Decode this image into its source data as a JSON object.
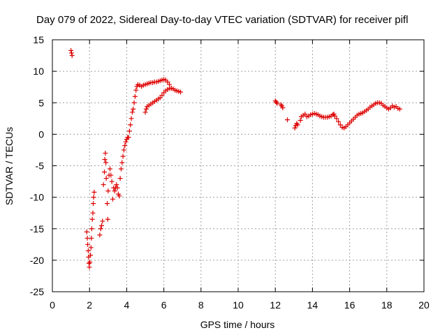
{
  "chart_data": {
    "type": "scatter",
    "title": "Day 079 of 2022, Sidereal Day-to-day VTEC variation (SDTVAR) for receiver pifl",
    "xlabel": "GPS time / hours",
    "ylabel": "SDTVAR / TECUs",
    "xlim": [
      0,
      20
    ],
    "ylim": [
      -25,
      15
    ],
    "xticks": [
      0,
      2,
      4,
      6,
      8,
      10,
      12,
      14,
      16,
      18,
      20
    ],
    "yticks": [
      -25,
      -20,
      -15,
      -10,
      -5,
      0,
      5,
      10,
      15
    ],
    "grid": true,
    "marker": "+",
    "marker_color": "#dd0000",
    "series": [
      {
        "name": "SDTVAR",
        "points": [
          [
            1.0,
            13.3
          ],
          [
            1.03,
            12.9
          ],
          [
            1.06,
            12.5
          ],
          [
            1.85,
            -15.5
          ],
          [
            1.88,
            -16.5
          ],
          [
            1.9,
            -17.5
          ],
          [
            1.93,
            -18.5
          ],
          [
            1.95,
            -19.5
          ],
          [
            1.97,
            -20.5
          ],
          [
            1.99,
            -21.1
          ],
          [
            2.02,
            -20.3
          ],
          [
            2.05,
            -19.2
          ],
          [
            2.08,
            -18.0
          ],
          [
            2.1,
            -16.5
          ],
          [
            2.12,
            -15.0
          ],
          [
            2.15,
            -13.5
          ],
          [
            2.18,
            -12.5
          ],
          [
            2.2,
            -11.0
          ],
          [
            2.22,
            -10.0
          ],
          [
            2.25,
            -9.2
          ],
          [
            2.55,
            -16.0
          ],
          [
            2.6,
            -15.0
          ],
          [
            2.65,
            -14.5
          ],
          [
            2.7,
            -13.8
          ],
          [
            2.75,
            -8.0
          ],
          [
            2.8,
            -6.0
          ],
          [
            2.82,
            -4.0
          ],
          [
            2.85,
            -3.0
          ],
          [
            2.88,
            -4.5
          ],
          [
            2.9,
            -7.0
          ],
          [
            2.95,
            -11.0
          ],
          [
            2.98,
            -13.5
          ],
          [
            3.0,
            -9.0
          ],
          [
            3.05,
            -6.5
          ],
          [
            3.1,
            -5.5
          ],
          [
            3.15,
            -6.5
          ],
          [
            3.2,
            -7.5
          ],
          [
            3.25,
            -10.3
          ],
          [
            3.3,
            -8.5
          ],
          [
            3.35,
            -9.0
          ],
          [
            3.4,
            -8.5
          ],
          [
            3.45,
            -8.0
          ],
          [
            3.5,
            -8.5
          ],
          [
            3.55,
            -9.5
          ],
          [
            3.6,
            -9.8
          ],
          [
            3.65,
            -7.0
          ],
          [
            3.7,
            -5.5
          ],
          [
            3.75,
            -4.5
          ],
          [
            3.8,
            -3.5
          ],
          [
            3.85,
            -2.5
          ],
          [
            3.9,
            -1.8
          ],
          [
            3.95,
            -1.2
          ],
          [
            4.0,
            -0.8
          ],
          [
            4.05,
            -0.5
          ],
          [
            4.1,
            -0.5
          ],
          [
            4.15,
            0.5
          ],
          [
            4.2,
            1.5
          ],
          [
            4.25,
            2.5
          ],
          [
            4.3,
            3.5
          ],
          [
            4.35,
            4.0
          ],
          [
            4.4,
            5.0
          ],
          [
            4.45,
            6.0
          ],
          [
            4.5,
            7.0
          ],
          [
            4.55,
            7.6
          ],
          [
            4.6,
            7.9
          ],
          [
            4.7,
            7.8
          ],
          [
            4.8,
            7.6
          ],
          [
            4.9,
            7.8
          ],
          [
            5.0,
            7.9
          ],
          [
            5.1,
            8.0
          ],
          [
            5.2,
            8.1
          ],
          [
            5.3,
            8.2
          ],
          [
            5.4,
            8.2
          ],
          [
            5.5,
            8.3
          ],
          [
            5.6,
            8.3
          ],
          [
            5.7,
            8.4
          ],
          [
            5.8,
            8.5
          ],
          [
            5.9,
            8.6
          ],
          [
            6.0,
            8.7
          ],
          [
            6.1,
            8.6
          ],
          [
            6.2,
            8.3
          ],
          [
            6.3,
            7.9
          ],
          [
            6.4,
            7.3
          ],
          [
            5.0,
            3.5
          ],
          [
            5.05,
            4.0
          ],
          [
            5.1,
            4.4
          ],
          [
            5.2,
            4.6
          ],
          [
            5.3,
            4.8
          ],
          [
            5.4,
            5.0
          ],
          [
            5.5,
            5.2
          ],
          [
            5.6,
            5.4
          ],
          [
            5.7,
            5.6
          ],
          [
            5.8,
            5.8
          ],
          [
            5.9,
            6.2
          ],
          [
            6.0,
            6.6
          ],
          [
            6.1,
            6.9
          ],
          [
            6.2,
            7.1
          ],
          [
            6.3,
            7.3
          ],
          [
            6.4,
            7.3
          ],
          [
            6.5,
            7.2
          ],
          [
            6.6,
            7.0
          ],
          [
            6.7,
            6.9
          ],
          [
            6.8,
            6.8
          ],
          [
            6.9,
            6.7
          ],
          [
            12.0,
            5.3
          ],
          [
            12.05,
            5.1
          ],
          [
            12.1,
            4.9
          ],
          [
            12.3,
            4.7
          ],
          [
            12.35,
            4.5
          ],
          [
            12.4,
            4.2
          ],
          [
            12.65,
            2.3
          ],
          [
            13.05,
            1.0
          ],
          [
            13.1,
            1.4
          ],
          [
            13.15,
            1.7
          ],
          [
            13.2,
            1.5
          ],
          [
            13.35,
            2.2
          ],
          [
            13.4,
            2.8
          ],
          [
            13.5,
            3.0
          ],
          [
            13.6,
            3.2
          ],
          [
            13.7,
            2.8
          ],
          [
            13.8,
            2.9
          ],
          [
            13.9,
            3.1
          ],
          [
            14.0,
            3.2
          ],
          [
            14.1,
            3.3
          ],
          [
            14.2,
            3.2
          ],
          [
            14.3,
            3.1
          ],
          [
            14.4,
            2.9
          ],
          [
            14.5,
            2.8
          ],
          [
            14.6,
            2.7
          ],
          [
            14.7,
            2.7
          ],
          [
            14.8,
            2.7
          ],
          [
            14.9,
            2.8
          ],
          [
            15.0,
            2.9
          ],
          [
            15.1,
            3.1
          ],
          [
            15.15,
            3.2
          ],
          [
            15.2,
            2.9
          ],
          [
            15.3,
            2.5
          ],
          [
            15.4,
            2.0
          ],
          [
            15.5,
            1.5
          ],
          [
            15.6,
            1.1
          ],
          [
            15.7,
            1.0
          ],
          [
            15.8,
            1.2
          ],
          [
            15.9,
            1.5
          ],
          [
            16.0,
            1.8
          ],
          [
            16.1,
            2.1
          ],
          [
            16.2,
            2.4
          ],
          [
            16.3,
            2.7
          ],
          [
            16.4,
            3.0
          ],
          [
            16.5,
            3.2
          ],
          [
            16.6,
            3.3
          ],
          [
            16.7,
            3.4
          ],
          [
            16.8,
            3.6
          ],
          [
            16.9,
            3.8
          ],
          [
            17.0,
            4.0
          ],
          [
            17.1,
            4.3
          ],
          [
            17.2,
            4.5
          ],
          [
            17.3,
            4.7
          ],
          [
            17.4,
            4.9
          ],
          [
            17.5,
            5.0
          ],
          [
            17.6,
            5.0
          ],
          [
            17.7,
            4.9
          ],
          [
            17.8,
            4.6
          ],
          [
            17.9,
            4.4
          ],
          [
            18.0,
            4.2
          ],
          [
            18.1,
            4.0
          ],
          [
            18.2,
            4.2
          ],
          [
            18.3,
            4.5
          ],
          [
            18.4,
            4.3
          ],
          [
            18.5,
            4.4
          ],
          [
            18.6,
            4.1
          ],
          [
            18.7,
            4.0
          ]
        ]
      }
    ]
  }
}
